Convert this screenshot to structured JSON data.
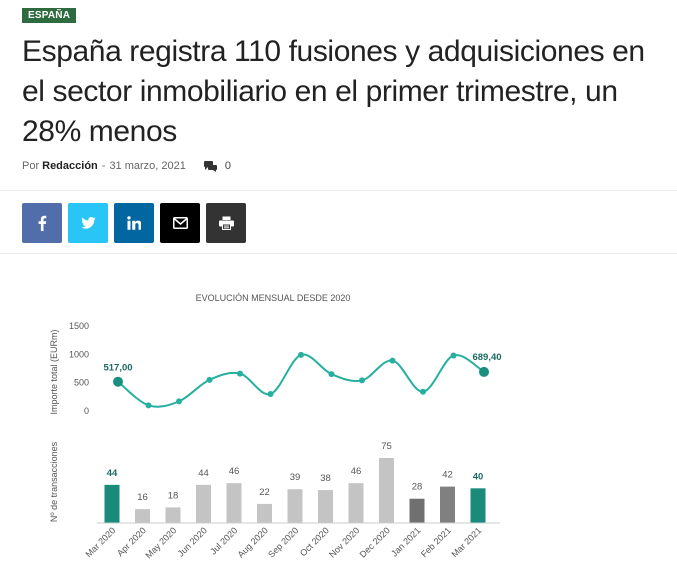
{
  "article": {
    "category": "ESPAÑA",
    "title": "España registra 110 fusiones y adquisiciones en el sector inmobiliario en el primer trimestre, un 28% menos",
    "by_label": "Por",
    "author": "Redacción",
    "separator": "-",
    "date": "31 marzo, 2021",
    "comments_count": "0"
  },
  "share": {
    "facebook": {
      "icon": "facebook-icon",
      "color": "#516eab"
    },
    "twitter": {
      "icon": "twitter-icon",
      "color": "#29c5f6"
    },
    "linkedin": {
      "icon": "linkedin-icon",
      "color": "#0266a0"
    },
    "email": {
      "icon": "mail-icon",
      "color": "#000000"
    },
    "print": {
      "icon": "print-icon",
      "color": "#333333"
    }
  },
  "chart_data": [
    {
      "type": "line",
      "title": "EVOLUCIÓN MENSUAL DESDE 2020",
      "ylabel": "Importe total (EURm)",
      "yticks": [
        0,
        500,
        1000,
        1500
      ],
      "ylim": [
        0,
        1500
      ],
      "categories": [
        "Mar 2020",
        "Apr 2020",
        "May 2020",
        "Jun 2020",
        "Jul 2020",
        "Aug 2020",
        "Sep 2020",
        "Oct 2020",
        "Nov 2020",
        "Dec 2020",
        "Jan 2021",
        "Feb 2021",
        "Mar 2021"
      ],
      "values": [
        517,
        100,
        170,
        550,
        660,
        300,
        990,
        650,
        540,
        890,
        340,
        980,
        689.4
      ],
      "data_labels": {
        "first": "517,00",
        "last": "689,40"
      },
      "colors": {
        "line": "#26b0a0",
        "endpoint": "#1a8f80",
        "label": "#1a6a60"
      },
      "grid": false
    },
    {
      "type": "bar",
      "ylabel": "Nº de transacciones",
      "categories": [
        "Mar 2020",
        "Apr 2020",
        "May 2020",
        "Jun 2020",
        "Jul 2020",
        "Aug 2020",
        "Sep 2020",
        "Oct 2020",
        "Nov 2020",
        "Dec 2020",
        "Jan 2021",
        "Feb 2021",
        "Mar 2021"
      ],
      "values": [
        44,
        16,
        18,
        44,
        46,
        22,
        39,
        38,
        46,
        75,
        28,
        42,
        40
      ],
      "colors": [
        "#1a8a7a",
        "#c4c4c4",
        "#c4c4c4",
        "#c4c4c4",
        "#c4c4c4",
        "#c4c4c4",
        "#c4c4c4",
        "#c4c4c4",
        "#c4c4c4",
        "#c4c4c4",
        "#707070",
        "#808080",
        "#1a8a7a"
      ],
      "grid": false
    }
  ]
}
